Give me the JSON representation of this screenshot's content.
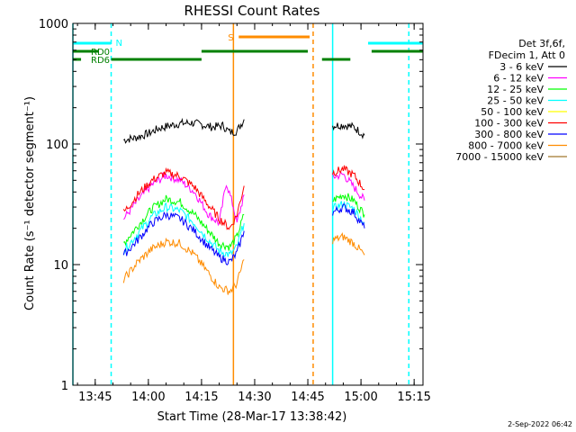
{
  "chart_data": {
    "type": "line",
    "title": "RHESSI Count Rates",
    "xlabel": "Start Time (28-Mar-17 13:38:42)",
    "ylabel": "Count Rate (s⁻¹ detector segment⁻¹)",
    "y_scale": "log",
    "ylim": [
      1,
      1000
    ],
    "xlim": [
      "13:38:42",
      "15:17:30"
    ],
    "x_ticks": [
      "13:45",
      "14:00",
      "14:15",
      "14:30",
      "14:45",
      "15:00",
      "15:15"
    ],
    "y_ticks": [
      "1",
      "10",
      "100",
      "1000"
    ],
    "footer_date": "2-Sep-2022 06:42",
    "legend_header": [
      "Det 3f,6f,",
      "FDecim 1, Att 0"
    ],
    "legend_position": "right",
    "series": [
      {
        "name": "3 - 6 keV",
        "color": "#000000",
        "segments": [
          {
            "x": [
              "13:53",
              "13:56",
              "14:00",
              "14:03",
              "14:06",
              "14:09",
              "14:12",
              "14:15",
              "14:18",
              "14:21",
              "14:23",
              "14:25",
              "14:27"
            ],
            "y": [
              108,
              112,
              122,
              135,
              142,
              148,
              150,
              145,
              138,
              142,
              125,
              128,
              160
            ]
          },
          {
            "x": [
              "14:52",
              "14:55",
              "14:58",
              "15:01"
            ],
            "y": [
              142,
              144,
              138,
              118
            ]
          }
        ]
      },
      {
        "name": "6 - 12 keV",
        "color": "#ff00ff",
        "segments": [
          {
            "x": [
              "13:53",
              "13:57",
              "14:01",
              "14:05",
              "14:09",
              "14:13",
              "14:17",
              "14:20",
              "14:22",
              "14:24",
              "14:25",
              "14:27"
            ],
            "y": [
              24,
              34,
              46,
              55,
              50,
              40,
              26,
              22,
              48,
              30,
              22,
              38
            ]
          },
          {
            "x": [
              "14:52",
              "14:55",
              "14:58",
              "15:01"
            ],
            "y": [
              53,
              56,
              44,
              34
            ]
          }
        ]
      },
      {
        "name": "12 - 25 keV",
        "color": "#00ff00",
        "segments": [
          {
            "x": [
              "13:53",
              "13:57",
              "14:01",
              "14:05",
              "14:09",
              "14:13",
              "14:17",
              "14:20",
              "14:23",
              "14:25",
              "14:27"
            ],
            "y": [
              15,
              21,
              29,
              35,
              33,
              26,
              19,
              15,
              14,
              17,
              26
            ]
          },
          {
            "x": [
              "14:52",
              "14:55",
              "14:58",
              "15:01"
            ],
            "y": [
              34,
              38,
              34,
              26
            ]
          }
        ]
      },
      {
        "name": "25 - 50 keV",
        "color": "#00ffff",
        "segments": [
          {
            "x": [
              "13:53",
              "13:57",
              "14:01",
              "14:05",
              "14:09",
              "14:13",
              "14:17",
              "14:20",
              "14:23",
              "14:25",
              "14:27"
            ],
            "y": [
              13,
              18,
              25,
              30,
              28,
              22,
              16,
              13,
              12,
              14,
              22
            ]
          },
          {
            "x": [
              "14:52",
              "14:55",
              "14:58",
              "15:01"
            ],
            "y": [
              29,
              32,
              29,
              22
            ]
          }
        ]
      },
      {
        "name": "50 - 100 keV",
        "color": "#ffff00",
        "segments": []
      },
      {
        "name": "100 - 300 keV",
        "color": "#ff0000",
        "segments": [
          {
            "x": [
              "13:53",
              "13:57",
              "14:01",
              "14:05",
              "14:09",
              "14:13",
              "14:17",
              "14:20",
              "14:23",
              "14:25",
              "14:27"
            ],
            "y": [
              27,
              38,
              50,
              58,
              54,
              44,
              31,
              24,
              20,
              26,
              45
            ]
          },
          {
            "x": [
              "14:52",
              "14:55",
              "14:58",
              "15:01"
            ],
            "y": [
              58,
              62,
              55,
              42
            ]
          }
        ]
      },
      {
        "name": "300 - 800 keV",
        "color": "#0000ff",
        "segments": [
          {
            "x": [
              "13:53",
              "13:57",
              "14:01",
              "14:05",
              "14:09",
              "14:13",
              "14:17",
              "14:20",
              "14:23",
              "14:25",
              "14:27"
            ],
            "y": [
              12,
              16,
              22,
              26,
              24,
              19,
              14,
              11.5,
              10.5,
              12.5,
              19
            ]
          },
          {
            "x": [
              "14:52",
              "14:55",
              "14:58",
              "15:01"
            ],
            "y": [
              27,
              30,
              27,
              20
            ]
          }
        ]
      },
      {
        "name": "800 - 7000 keV",
        "color": "#ff8c00",
        "segments": [
          {
            "x": [
              "13:53",
              "13:57",
              "14:01",
              "14:05",
              "14:09",
              "14:13",
              "14:17",
              "14:20",
              "14:23",
              "14:25",
              "14:27"
            ],
            "y": [
              7.5,
              10.5,
              13.5,
              15.5,
              15,
              12,
              8.5,
              6.5,
              6,
              7,
              11
            ]
          },
          {
            "x": [
              "14:52",
              "14:55",
              "14:58",
              "15:01"
            ],
            "y": [
              16,
              17,
              15,
              12
            ]
          }
        ]
      },
      {
        "name": "7000 - 15000 keV",
        "color": "#a0782c",
        "segments": []
      }
    ],
    "flags": [
      {
        "label": "N",
        "color": "#00ffff",
        "level": 1,
        "spans": [
          [
            "13:38:42",
            "13:49:30"
          ],
          [
            "15:02",
            "15:17:30"
          ]
        ]
      },
      {
        "label": "RD0",
        "color": "#008000",
        "level": 2,
        "spans": [
          [
            "13:38:42",
            "13:46"
          ],
          [
            "14:15",
            "14:45"
          ],
          [
            "15:03",
            "15:17:30"
          ]
        ]
      },
      {
        "label": "RD6",
        "color": "#008000",
        "level": 3,
        "spans": [
          [
            "13:38:42",
            "13:41"
          ],
          [
            "13:49:30",
            "14:15"
          ],
          [
            "14:49",
            "14:57"
          ]
        ]
      },
      {
        "label": "S",
        "color": "#ff8c00",
        "level": 0,
        "spans": [
          [
            "14:25:30",
            "14:45:30"
          ]
        ]
      }
    ],
    "markers": [
      {
        "time": "13:38:42",
        "color": "#00ffff",
        "style": "solid"
      },
      {
        "time": "13:49:30",
        "color": "#00ffff",
        "style": "dashed"
      },
      {
        "time": "14:24:00",
        "color": "#ff8c00",
        "style": "solid"
      },
      {
        "time": "14:46:30",
        "color": "#ff8c00",
        "style": "dashed"
      },
      {
        "time": "14:52:00",
        "color": "#00ffff",
        "style": "solid"
      },
      {
        "time": "15:13:30",
        "color": "#00ffff",
        "style": "dashed"
      }
    ],
    "grid": false
  }
}
